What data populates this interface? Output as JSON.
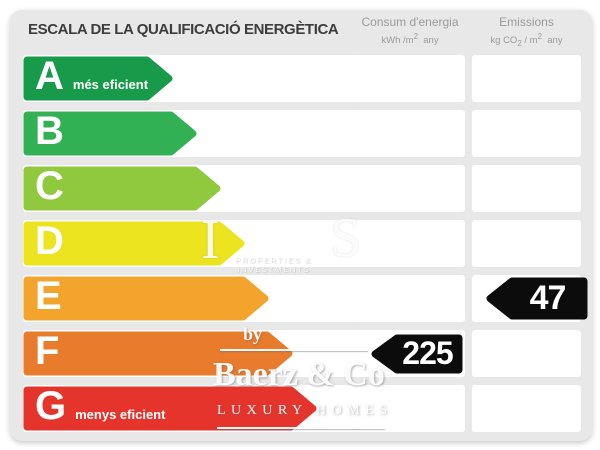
{
  "title": "ESCALA DE LA QUALIFICACIÓ ENERGÈTICA",
  "columns": {
    "consum": {
      "title": "Consum d'energia",
      "unit": {
        "pre": "kWh /m",
        "sup": "2",
        "post": "  any"
      }
    },
    "emissions": {
      "title": "Emissions",
      "unit": {
        "pre": "kg CO",
        "sub": "2",
        "mid": " / m",
        "sup": "2",
        "post": "  any"
      }
    }
  },
  "scale": [
    {
      "grade": "A",
      "label": "més eficient",
      "color": "#179b4b",
      "length": 150
    },
    {
      "grade": "B",
      "label": "",
      "color": "#31b154",
      "length": 174
    },
    {
      "grade": "C",
      "label": "",
      "color": "#90c83e",
      "length": 198
    },
    {
      "grade": "D",
      "label": "",
      "color": "#ece41e",
      "length": 222
    },
    {
      "grade": "E",
      "label": "",
      "color": "#f2a42c",
      "length": 246
    },
    {
      "grade": "F",
      "label": "",
      "color": "#e87c2c",
      "length": 270
    },
    {
      "grade": "G",
      "label": "menys eficient",
      "color": "#e5342c",
      "length": 294
    }
  ],
  "ratings": {
    "consum": {
      "value": "225",
      "grade": "F"
    },
    "emissions": {
      "value": "47",
      "grade": "E"
    }
  },
  "tag_color": "#0c0c0c",
  "watermark": {
    "ghost_glyph_1": "I",
    "ghost_glyph_2": "S",
    "partner_tagline": "PROPERTIES & INVESTMENTS",
    "by": "by",
    "brand": "Baerz & Co",
    "tagline": "LUXURY HOMES"
  },
  "chart_data": {
    "type": "bar",
    "title": "ESCALA DE LA QUALIFICACIÓ ENERGÈTICA",
    "categories": [
      "A",
      "B",
      "C",
      "D",
      "E",
      "F",
      "G"
    ],
    "series": [
      {
        "name": "scale-arrow-relative-length-px",
        "values": [
          150,
          174,
          198,
          222,
          246,
          270,
          294
        ]
      }
    ],
    "category_labels": {
      "A": "més eficient",
      "G": "menys eficient"
    },
    "annotations": [
      {
        "column": "Consum d'energia",
        "unit": "kWh/m2 any",
        "value": 225,
        "grade": "F"
      },
      {
        "column": "Emissions",
        "unit": "kg CO2/m2 any",
        "value": 47,
        "grade": "E"
      }
    ],
    "legend_position": "none",
    "grid": false
  }
}
